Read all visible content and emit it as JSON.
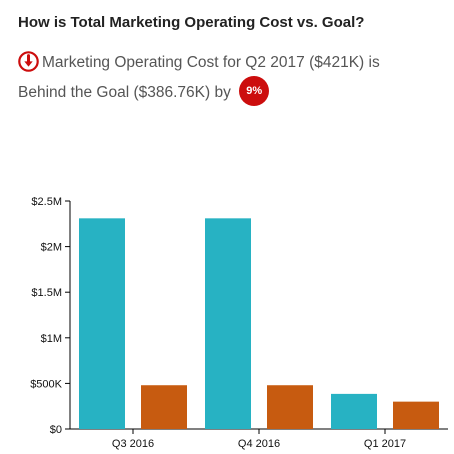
{
  "header": {
    "title": "How is Total Marketing Operating Cost vs. Goal?",
    "summary_line1": "Marketing Operating Cost for Q2 2017 ($421K) is",
    "summary_line2": "Behind the Goal ($386.76K) by",
    "badge_value": "9%",
    "badge_color": "#cc0d0d",
    "status_icon": "arrow-down-circle-icon"
  },
  "chart_data": {
    "type": "bar",
    "categories": [
      "Q3 2016",
      "Q4 2016",
      "Q1 2017"
    ],
    "series": [
      {
        "values": [
          2310000,
          2310000,
          385000
        ],
        "color": "#27b2c3"
      },
      {
        "values": [
          480000,
          480000,
          300000
        ],
        "color": "#c75b10"
      }
    ],
    "ylim": [
      0,
      2500000
    ],
    "yticks": [
      0,
      500000,
      1000000,
      1500000,
      2000000,
      2500000
    ],
    "ytick_labels": [
      "$0",
      "$500K",
      "$1M",
      "$1.5M",
      "$2M",
      "$2.5M"
    ],
    "xlabel": "",
    "ylabel": "",
    "grid": false,
    "legend": "none"
  }
}
